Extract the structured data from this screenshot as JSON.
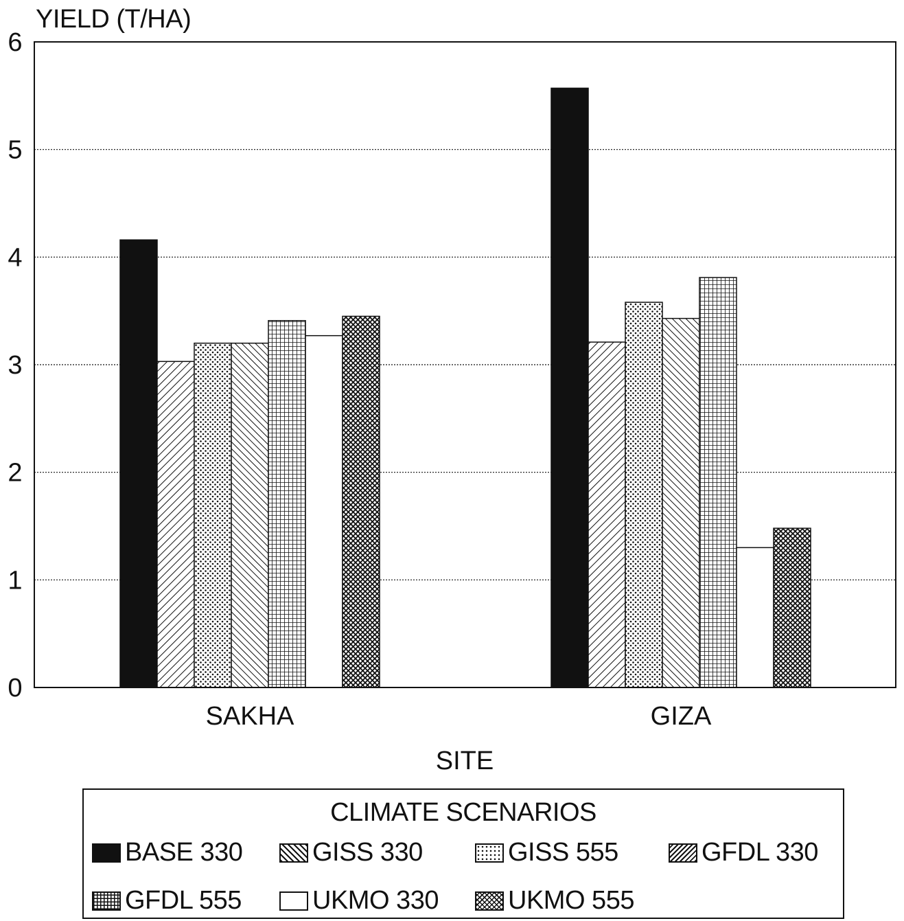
{
  "chart_data": {
    "type": "bar",
    "title": "",
    "ylabel": "YIELD (T/HA)",
    "xlabel": "SITE",
    "ylim": [
      0,
      6
    ],
    "yticks": [
      "0",
      "1",
      "2",
      "3",
      "4",
      "5",
      "6"
    ],
    "grid": true,
    "categories": [
      "SAKHA",
      "GIZA"
    ],
    "legend_title": "CLIMATE SCENARIOS",
    "legend_position": "bottom",
    "series": [
      {
        "name": "BASE 330",
        "pattern": "solid",
        "values": [
          4.16,
          5.57
        ]
      },
      {
        "name": "GISS 330",
        "pattern": "diagonal-hatch",
        "values": [
          3.03,
          3.21
        ]
      },
      {
        "name": "GISS 555",
        "pattern": "dots",
        "values": [
          3.2,
          3.58
        ]
      },
      {
        "name": "GFDL 330",
        "pattern": "dense-diagonal-hatch",
        "values": [
          3.2,
          3.43
        ]
      },
      {
        "name": "GFDL 555",
        "pattern": "grid",
        "values": [
          3.41,
          3.81
        ]
      },
      {
        "name": "UKMO 330",
        "pattern": "white",
        "values": [
          3.27,
          1.3
        ]
      },
      {
        "name": "UKMO 555",
        "pattern": "crosshatch",
        "values": [
          3.45,
          1.48
        ]
      }
    ],
    "colors": {
      "ink": "#111111",
      "background": "#ffffff"
    }
  }
}
